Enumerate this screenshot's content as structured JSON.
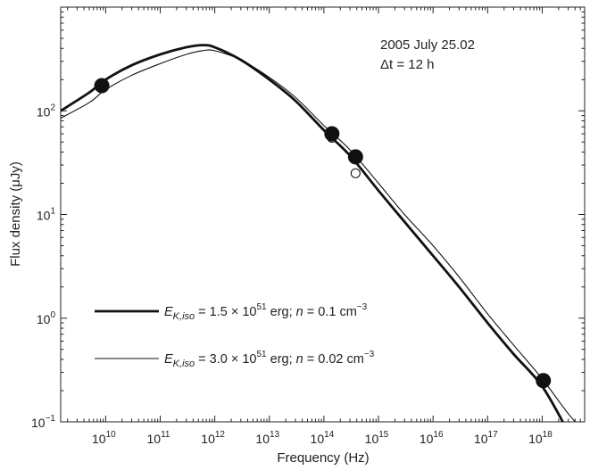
{
  "chart_data": {
    "type": "line",
    "title": "",
    "xlabel": "Frequency  (Hz)",
    "ylabel": "Flux density (μJy)",
    "x_scale": "log",
    "y_scale": "log",
    "xlim": [
      1500000000.0,
      6e+18
    ],
    "ylim": [
      0.1,
      1000
    ],
    "grid": false,
    "x_tick_labels": [
      {
        "value": 10000000000.0,
        "base": "10",
        "exp": "10"
      },
      {
        "value": 100000000000.0,
        "base": "10",
        "exp": "11"
      },
      {
        "value": 1000000000000.0,
        "base": "10",
        "exp": "12"
      },
      {
        "value": 10000000000000.0,
        "base": "10",
        "exp": "13"
      },
      {
        "value": 100000000000000.0,
        "base": "10",
        "exp": "14"
      },
      {
        "value": 1000000000000000.0,
        "base": "10",
        "exp": "15"
      },
      {
        "value": 1e+16,
        "base": "10",
        "exp": "16"
      },
      {
        "value": 1e+17,
        "base": "10",
        "exp": "17"
      },
      {
        "value": 1e+18,
        "base": "10",
        "exp": "18"
      }
    ],
    "y_tick_labels": [
      {
        "value": 0.1,
        "base": "10",
        "exp": "−1"
      },
      {
        "value": 1,
        "base": "10",
        "exp": "0"
      },
      {
        "value": 10,
        "base": "10",
        "exp": "1"
      },
      {
        "value": 100,
        "base": "10",
        "exp": "2"
      }
    ],
    "annotations": [
      "2005 July 25.02",
      "Δt = 12 h"
    ],
    "series": [
      {
        "name": "E_K,iso = 1.5 × 10^51 erg; n = 0.1 cm^−3",
        "style": "thick",
        "x": [
          1500000000.0,
          5000000000.0,
          10000000000.0,
          30000000000.0,
          100000000000.0,
          300000000000.0,
          600000000000.0,
          1000000000000.0,
          3000000000000.0,
          10000000000000.0,
          30000000000000.0,
          100000000000000.0,
          300000000000000.0,
          1000000000000000.0,
          3000000000000000.0,
          1e+16,
          3e+16,
          1e+17,
          3e+17,
          1e+18,
          3e+18
        ],
        "y": [
          100,
          150,
          200,
          275,
          350,
          410,
          430,
          410,
          310,
          200,
          125,
          65,
          37,
          17,
          8.5,
          4,
          2,
          0.9,
          0.45,
          0.22,
          0.08
        ]
      },
      {
        "name": "E_K,iso = 3.0 × 10^51 erg; n = 0.02 cm^−3",
        "style": "thin",
        "x": [
          1500000000.0,
          5000000000.0,
          10000000000.0,
          30000000000.0,
          100000000000.0,
          300000000000.0,
          600000000000.0,
          1000000000000.0,
          3000000000000.0,
          10000000000000.0,
          30000000000000.0,
          100000000000000.0,
          300000000000000.0,
          1000000000000000.0,
          3000000000000000.0,
          1e+16,
          3e+16,
          1e+17,
          3e+17,
          1e+18,
          3e+18,
          6e+18
        ],
        "y": [
          85,
          120,
          160,
          220,
          285,
          350,
          380,
          380,
          310,
          210,
          135,
          72,
          42,
          20,
          10,
          5,
          2.5,
          1.1,
          0.55,
          0.26,
          0.12,
          0.08
        ]
      }
    ],
    "observed_points": {
      "filled": [
        {
          "x": 8500000000.0,
          "y": 175
        },
        {
          "x": 140000000000000.0,
          "y": 60
        },
        {
          "x": 380000000000000.0,
          "y": 36
        },
        {
          "x": 1.05e+18,
          "y": 0.25
        }
      ],
      "open": [
        {
          "x": 140000000000000.0,
          "y": 55
        },
        {
          "x": 380000000000000.0,
          "y": 25
        }
      ]
    },
    "legend": {
      "placement": "bottom-left",
      "entries": [
        {
          "style": "thick",
          "prefix": "E",
          "sub": "K,iso",
          "text1": " = 1.5 × 10",
          "exp1": "51",
          "text2": " erg; ",
          "n": "n",
          "text3": " = 0.1 cm",
          "exp2": "−3"
        },
        {
          "style": "thin",
          "prefix": "E",
          "sub": "K,iso",
          "text1": " = 3.0 × 10",
          "exp1": "51",
          "text2": " erg; ",
          "n": "n",
          "text3": " = 0.02 cm",
          "exp2": "−3"
        }
      ]
    }
  }
}
